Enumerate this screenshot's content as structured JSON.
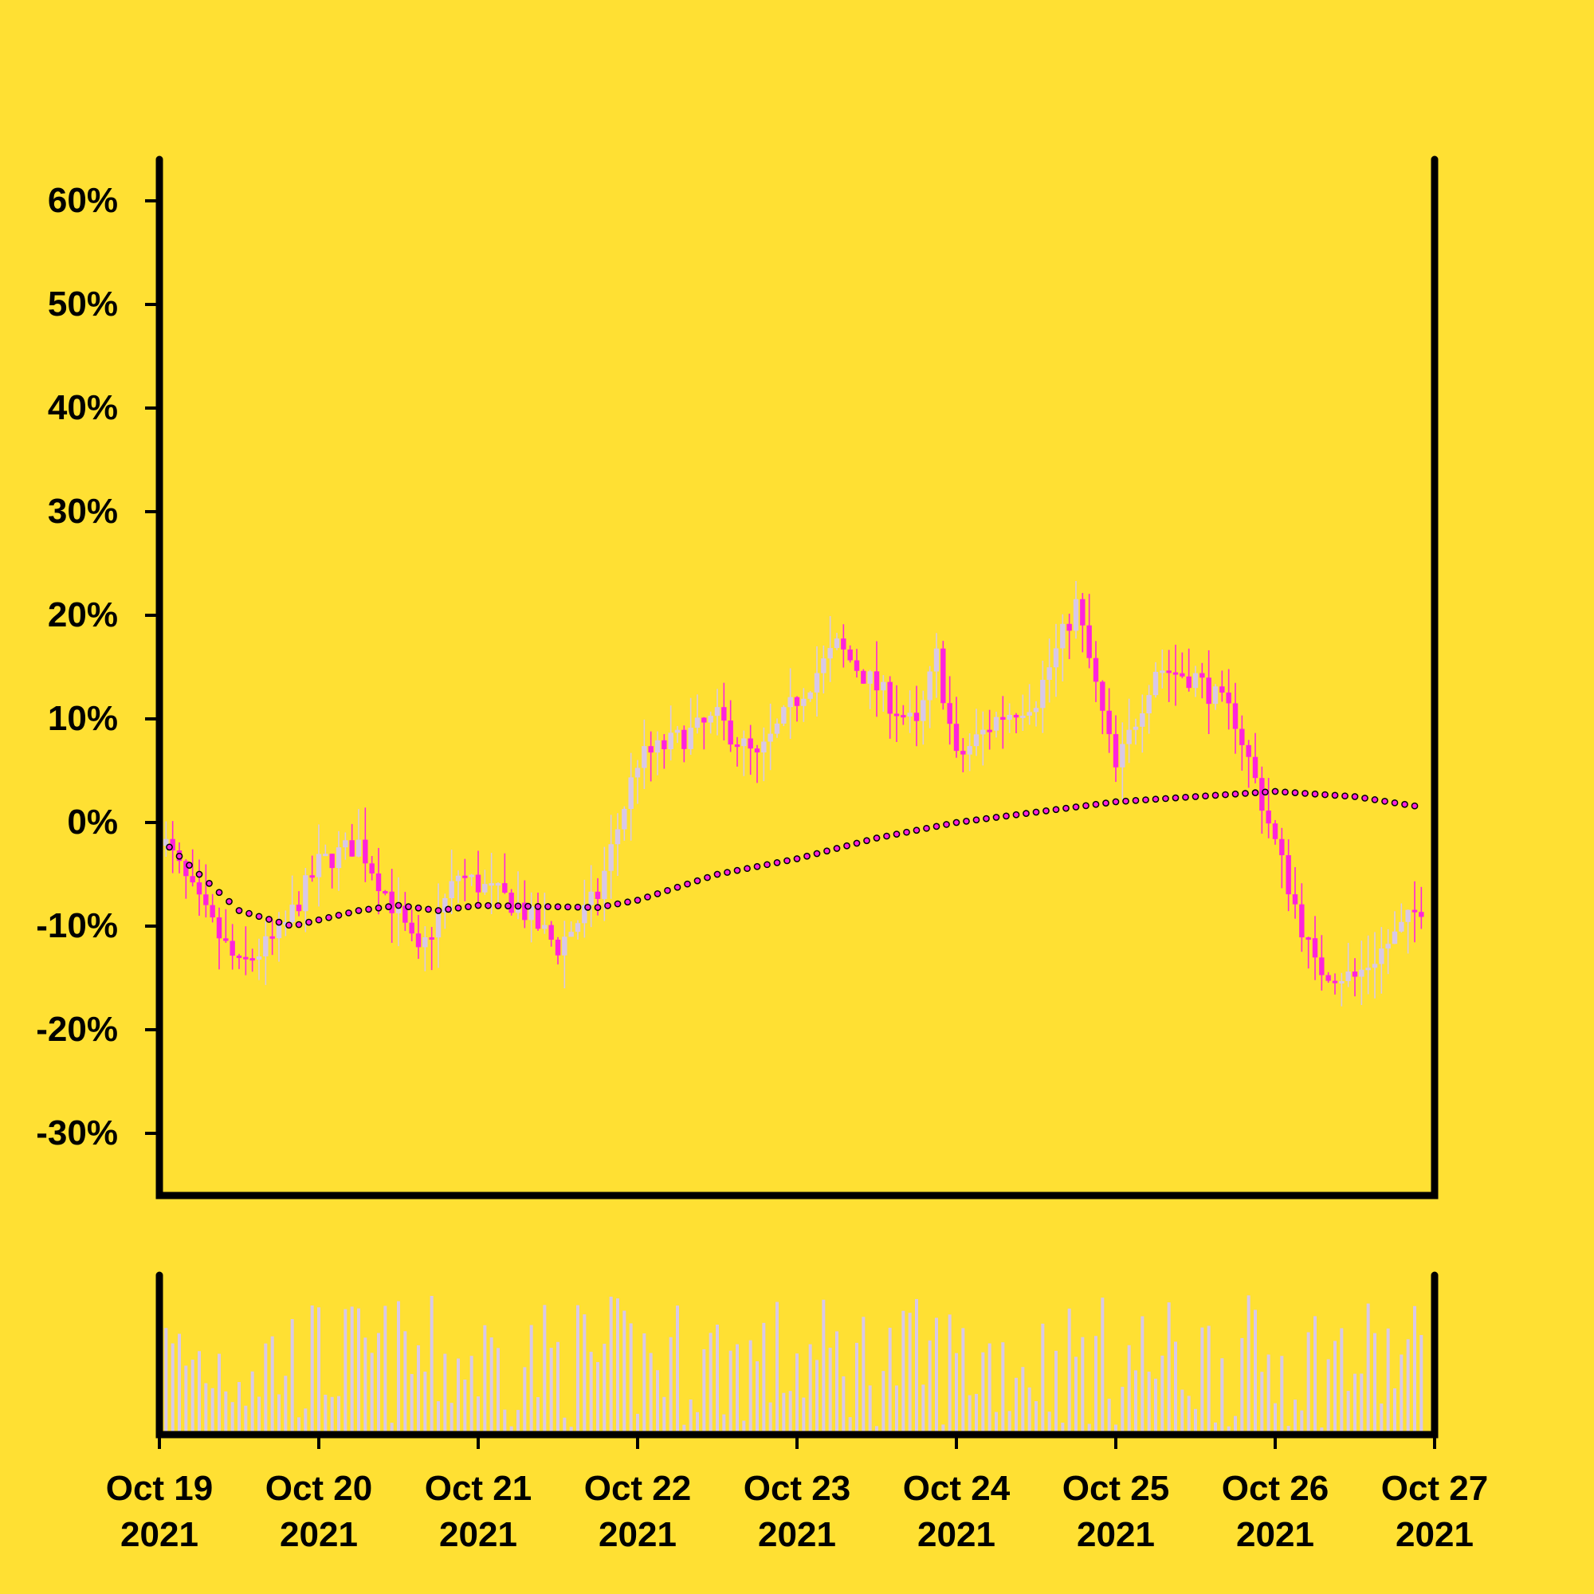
{
  "chart_data": {
    "type": "candlestick",
    "background": "#FFE033",
    "colors": {
      "up": "#D8C8E8",
      "down": "#FF22DD",
      "moving_average": "#FF22DD",
      "volume": "#D8C8E8",
      "axis": "#000000"
    },
    "x_start": "2021-10-19",
    "x_end": "2021-10-27",
    "x_ticks": [
      {
        "date": "2021-10-19",
        "line1": "Oct 19",
        "line2": "2021"
      },
      {
        "date": "2021-10-20",
        "line1": "Oct 20",
        "line2": "2021"
      },
      {
        "date": "2021-10-21",
        "line1": "Oct 21",
        "line2": "2021"
      },
      {
        "date": "2021-10-22",
        "line1": "Oct 22",
        "line2": "2021"
      },
      {
        "date": "2021-10-23",
        "line1": "Oct 23",
        "line2": "2021"
      },
      {
        "date": "2021-10-24",
        "line1": "Oct 24",
        "line2": "2021"
      },
      {
        "date": "2021-10-25",
        "line1": "Oct 25",
        "line2": "2021"
      },
      {
        "date": "2021-10-26",
        "line1": "Oct 26",
        "line2": "2021"
      },
      {
        "date": "2021-10-27",
        "line1": "Oct 27",
        "line2": "2021"
      }
    ],
    "y_ticks": [
      {
        "value": 60,
        "label": "60%"
      },
      {
        "value": 50,
        "label": "50%"
      },
      {
        "value": 40,
        "label": "40%"
      },
      {
        "value": 30,
        "label": "30%"
      },
      {
        "value": 20,
        "label": "20%"
      },
      {
        "value": 10,
        "label": "10%"
      },
      {
        "value": 0,
        "label": "0%"
      },
      {
        "value": -10,
        "label": "-10%"
      },
      {
        "value": -20,
        "label": "-20%"
      },
      {
        "value": -30,
        "label": "-30%"
      }
    ],
    "ylim": [
      -36,
      64
    ],
    "close_path": [
      [
        "2021-10-19 00:00",
        -1
      ],
      [
        "2021-10-19 06:00",
        -8
      ],
      [
        "2021-10-19 12:00",
        -14
      ],
      [
        "2021-10-19 18:00",
        -11
      ],
      [
        "2021-10-20 00:00",
        -4
      ],
      [
        "2021-10-20 06:00",
        -2
      ],
      [
        "2021-10-20 12:00",
        -9
      ],
      [
        "2021-10-20 15:00",
        -13
      ],
      [
        "2021-10-20 21:00",
        -5
      ],
      [
        "2021-10-21 06:00",
        -8
      ],
      [
        "2021-10-21 12:00",
        -12
      ],
      [
        "2021-10-21 18:00",
        -7
      ],
      [
        "2021-10-22 00:00",
        6
      ],
      [
        "2021-10-22 12:00",
        10
      ],
      [
        "2021-10-22 18:00",
        6
      ],
      [
        "2021-10-23 00:00",
        12
      ],
      [
        "2021-10-23 06:00",
        17
      ],
      [
        "2021-10-23 12:00",
        13
      ],
      [
        "2021-10-23 18:00",
        9
      ],
      [
        "2021-10-23 21:00",
        16
      ],
      [
        "2021-10-24 00:00",
        6
      ],
      [
        "2021-10-24 06:00",
        10
      ],
      [
        "2021-10-24 12:00",
        12
      ],
      [
        "2021-10-24 18:00",
        21
      ],
      [
        "2021-10-25 00:00",
        5
      ],
      [
        "2021-10-25 06:00",
        15
      ],
      [
        "2021-10-25 12:00",
        14
      ],
      [
        "2021-10-25 18:00",
        10
      ],
      [
        "2021-10-26 00:00",
        -2
      ],
      [
        "2021-10-26 06:00",
        -14
      ],
      [
        "2021-10-26 12:00",
        -15
      ],
      [
        "2021-10-26 18:00",
        -11
      ],
      [
        "2021-10-26 22:00",
        -8
      ]
    ],
    "moving_average": [
      [
        "2021-10-19 00:00",
        -1.5
      ],
      [
        "2021-10-19 12:00",
        -8.5
      ],
      [
        "2021-10-19 20:00",
        -10
      ],
      [
        "2021-10-20 06:00",
        -8.5
      ],
      [
        "2021-10-20 12:00",
        -8
      ],
      [
        "2021-10-20 18:00",
        -8.5
      ],
      [
        "2021-10-21 00:00",
        -8
      ],
      [
        "2021-10-21 18:00",
        -8.2
      ],
      [
        "2021-10-22 00:00",
        -7.5
      ],
      [
        "2021-10-22 12:00",
        -5
      ],
      [
        "2021-10-23 00:00",
        -3.5
      ],
      [
        "2021-10-23 12:00",
        -1.5
      ],
      [
        "2021-10-24 00:00",
        0
      ],
      [
        "2021-10-24 12:00",
        1
      ],
      [
        "2021-10-25 00:00",
        2
      ],
      [
        "2021-10-25 12:00",
        2.5
      ],
      [
        "2021-10-26 00:00",
        3
      ],
      [
        "2021-10-26 12:00",
        2.5
      ],
      [
        "2021-10-26 22:00",
        1.5
      ]
    ],
    "volume_relative_max": 1
  }
}
